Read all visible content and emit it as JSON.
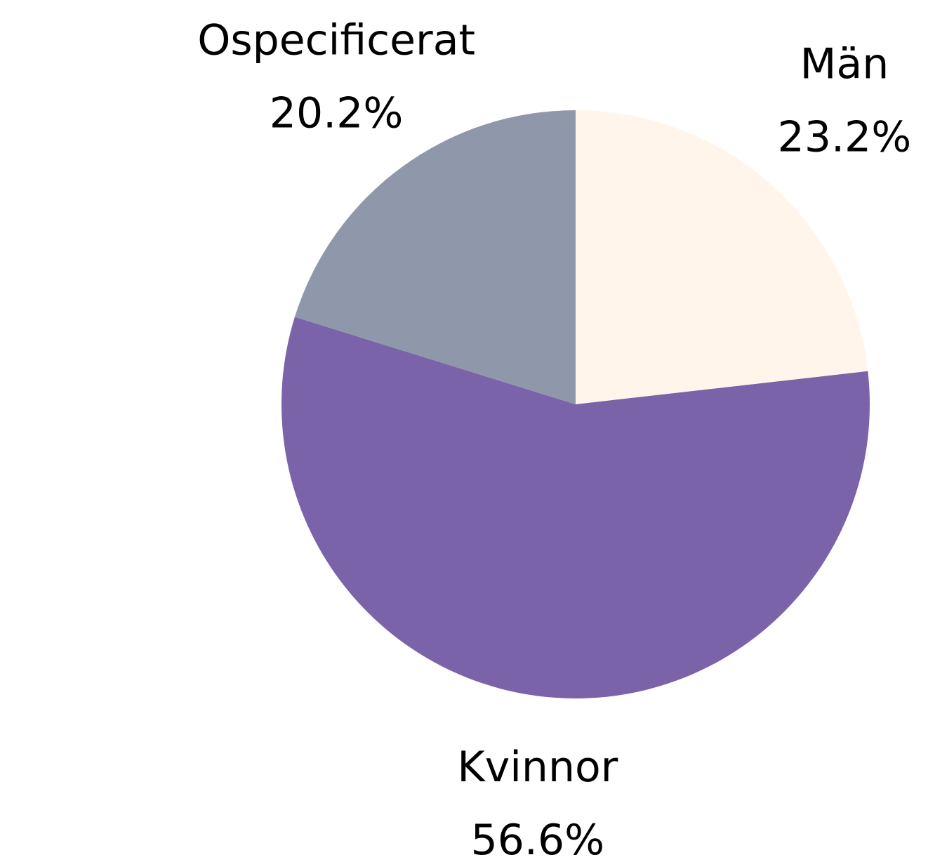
{
  "chart_data": {
    "type": "pie",
    "categories": [
      "Män",
      "Kvinnor",
      "Ospecificerat"
    ],
    "values": [
      23.2,
      56.6,
      20.2
    ],
    "value_labels": [
      "23.2%",
      "56.6%",
      "20.2%"
    ],
    "colors": [
      "#fff5eb",
      "#7a63a8",
      "#8f98aa"
    ]
  }
}
